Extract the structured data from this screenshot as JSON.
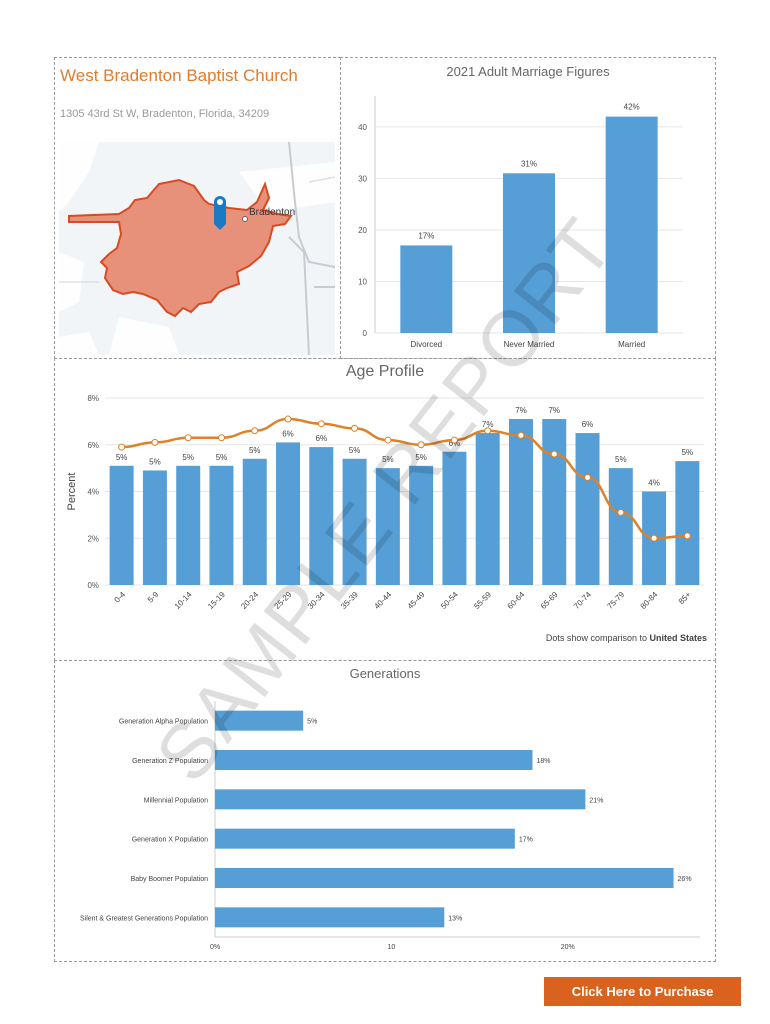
{
  "church": {
    "name": "West Bradenton Baptist Church",
    "address": "1305 43rd St W, Bradenton, Florida, 34209",
    "map": {
      "city_label": "Bradenton",
      "pin_icon": "map-pin-icon",
      "area_color": "#e8917a"
    }
  },
  "colors": {
    "bar": "#569fd6",
    "line": "#de8128",
    "accent": "#e07c2e",
    "button": "#d8621e"
  },
  "chart_data": [
    {
      "type": "bar",
      "title": "2021 Adult Marriage Figures",
      "categories": [
        "Divorced",
        "Never Married",
        "Married"
      ],
      "values": [
        17,
        31,
        42
      ],
      "data_labels": [
        "17%",
        "31%",
        "42%"
      ],
      "ylim": [
        0,
        46
      ],
      "yticks": [
        0,
        10,
        20,
        30,
        40
      ],
      "grid": true
    },
    {
      "type": "bar",
      "title": "Age Profile",
      "ylabel": "Percent",
      "categories": [
        "0-4",
        "5-9",
        "10-14",
        "15-19",
        "20-24",
        "25-29",
        "30-34",
        "35-39",
        "40-44",
        "45-49",
        "50-54",
        "55-59",
        "60-64",
        "65-69",
        "70-74",
        "75-79",
        "80-84",
        "85+"
      ],
      "series": [
        {
          "values": [
            5.1,
            4.9,
            5.1,
            5.1,
            5.4,
            6.1,
            5.9,
            5.4,
            5.0,
            5.1,
            5.7,
            6.5,
            7.1,
            7.1,
            6.5,
            5.0,
            4.0,
            5.3
          ]
        },
        {
          "type": "line",
          "values": [
            5.9,
            6.1,
            6.3,
            6.3,
            6.6,
            7.1,
            6.9,
            6.7,
            6.2,
            6.0,
            6.2,
            6.6,
            6.4,
            5.6,
            4.6,
            3.1,
            2.0,
            2.1
          ]
        }
      ],
      "data_labels": [
        "5%",
        "5%",
        "5%",
        "5%",
        "5%",
        "6%",
        "6%",
        "5%",
        "5%",
        "5%",
        "6%",
        "7%",
        "7%",
        "7%",
        "6%",
        "5%",
        "4%",
        "5%"
      ],
      "ylim": [
        0,
        8
      ],
      "yticks": [
        "0%",
        "2%",
        "4%",
        "6%",
        "8%"
      ],
      "grid": true,
      "note": {
        "text": "Dots show comparison to",
        "place": "United States"
      }
    },
    {
      "type": "bar",
      "title": "Generations",
      "orientation": "horizontal",
      "categories": [
        "Generation Alpha Population",
        "Generation Z Population",
        "Millennial Population",
        "Generation X Population",
        "Baby Boomer Population",
        "Silent & Greatest Generations Population"
      ],
      "values": [
        5,
        18,
        21,
        17,
        26,
        13
      ],
      "data_labels": [
        "5%",
        "18%",
        "21%",
        "17%",
        "26%",
        "13%"
      ],
      "xlim": [
        0,
        27.5
      ],
      "xticks": [
        "0%",
        "10",
        "20%"
      ]
    }
  ],
  "watermark": "SAMPLE REPORT",
  "purchase_button": "Click Here to Purchase"
}
